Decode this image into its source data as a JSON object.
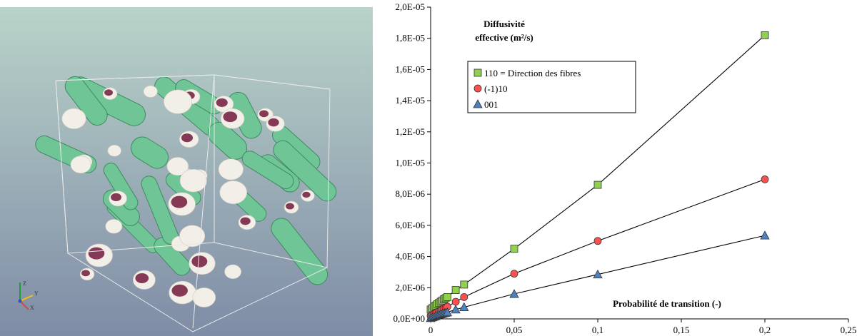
{
  "render": {
    "axis_labels": {
      "z": "Z",
      "y": "Y",
      "x": "X"
    },
    "colors": {
      "fiber": "#6fc596",
      "fiber_shadow": "#3f8a62",
      "cut_face": "#f2efe8",
      "deposit": "#7a2545",
      "bg_top": "#b9d3c9",
      "bg_bottom": "#7f8ca6"
    }
  },
  "chart_data": {
    "type": "scatter",
    "title": "Diffusivité effective (m²/s)",
    "title_lines": [
      "Diffusivité",
      "effective (m²/s)"
    ],
    "xlabel": "Probabilité de transition  (-)",
    "ylabel": "",
    "xlim": [
      0,
      0.25
    ],
    "ylim": [
      0,
      2e-05
    ],
    "xticks": [
      0,
      0.05,
      0.1,
      0.15,
      0.2,
      0.25
    ],
    "xtick_labels": [
      "0",
      "0,05",
      "0,1",
      "0,15",
      "0,2",
      "0,25"
    ],
    "yticks": [
      0,
      2e-06,
      4e-06,
      6e-06,
      8e-06,
      1e-05,
      1.2e-05,
      1.4e-05,
      1.6e-05,
      1.8e-05,
      2e-05
    ],
    "ytick_labels": [
      "0,0E+00",
      "2,0E-06",
      "4,0E-06",
      "6,0E-06",
      "8,0E-06",
      "1,0E-05",
      "1,2E-05",
      "1,4E-05",
      "1,6E-05",
      "1,8E-05",
      "2,0E-05"
    ],
    "grid": false,
    "legend_position": "top-left",
    "series": [
      {
        "name": "110 = Direction des fibres",
        "marker": "square",
        "color": "#92d050",
        "x": [
          0,
          0.001,
          0.002,
          0.003,
          0.004,
          0.005,
          0.006,
          0.007,
          0.008,
          0.009,
          0.01,
          0.015,
          0.02,
          0.05,
          0.1,
          0.2
        ],
        "y": [
          6e-07,
          6.9e-07,
          7.8e-07,
          8.6e-07,
          9.4e-07,
          1.02e-06,
          1.1e-06,
          1.18e-06,
          1.26e-06,
          1.33e-06,
          1.4e-06,
          1.85e-06,
          2.2e-06,
          4.5e-06,
          8.6e-06,
          1.82e-05
        ]
      },
      {
        "name": "(-1)10",
        "marker": "circle",
        "color": "#ff5050",
        "x": [
          0,
          0.001,
          0.002,
          0.003,
          0.004,
          0.005,
          0.006,
          0.007,
          0.008,
          0.009,
          0.01,
          0.015,
          0.02,
          0.05,
          0.1,
          0.2
        ],
        "y": [
          2e-07,
          2.6e-07,
          3.2e-07,
          3.8e-07,
          4.4e-07,
          5e-07,
          5.6e-07,
          6.2e-07,
          6.8e-07,
          7.3e-07,
          7.8e-07,
          1.1e-06,
          1.4e-06,
          2.9e-06,
          5e-06,
          8.95e-06
        ]
      },
      {
        "name": "001",
        "marker": "triangle",
        "color": "#4f81bd",
        "x": [
          0,
          0.001,
          0.002,
          0.003,
          0.004,
          0.005,
          0.006,
          0.007,
          0.008,
          0.009,
          0.01,
          0.015,
          0.02,
          0.05,
          0.1,
          0.2
        ],
        "y": [
          5e-08,
          1e-07,
          1.4e-07,
          1.8e-07,
          2.2e-07,
          2.6e-07,
          3e-07,
          3.3e-07,
          3.6e-07,
          3.9e-07,
          4.2e-07,
          6e-07,
          7.5e-07,
          1.6e-06,
          2.85e-06,
          5.35e-06
        ]
      }
    ]
  }
}
